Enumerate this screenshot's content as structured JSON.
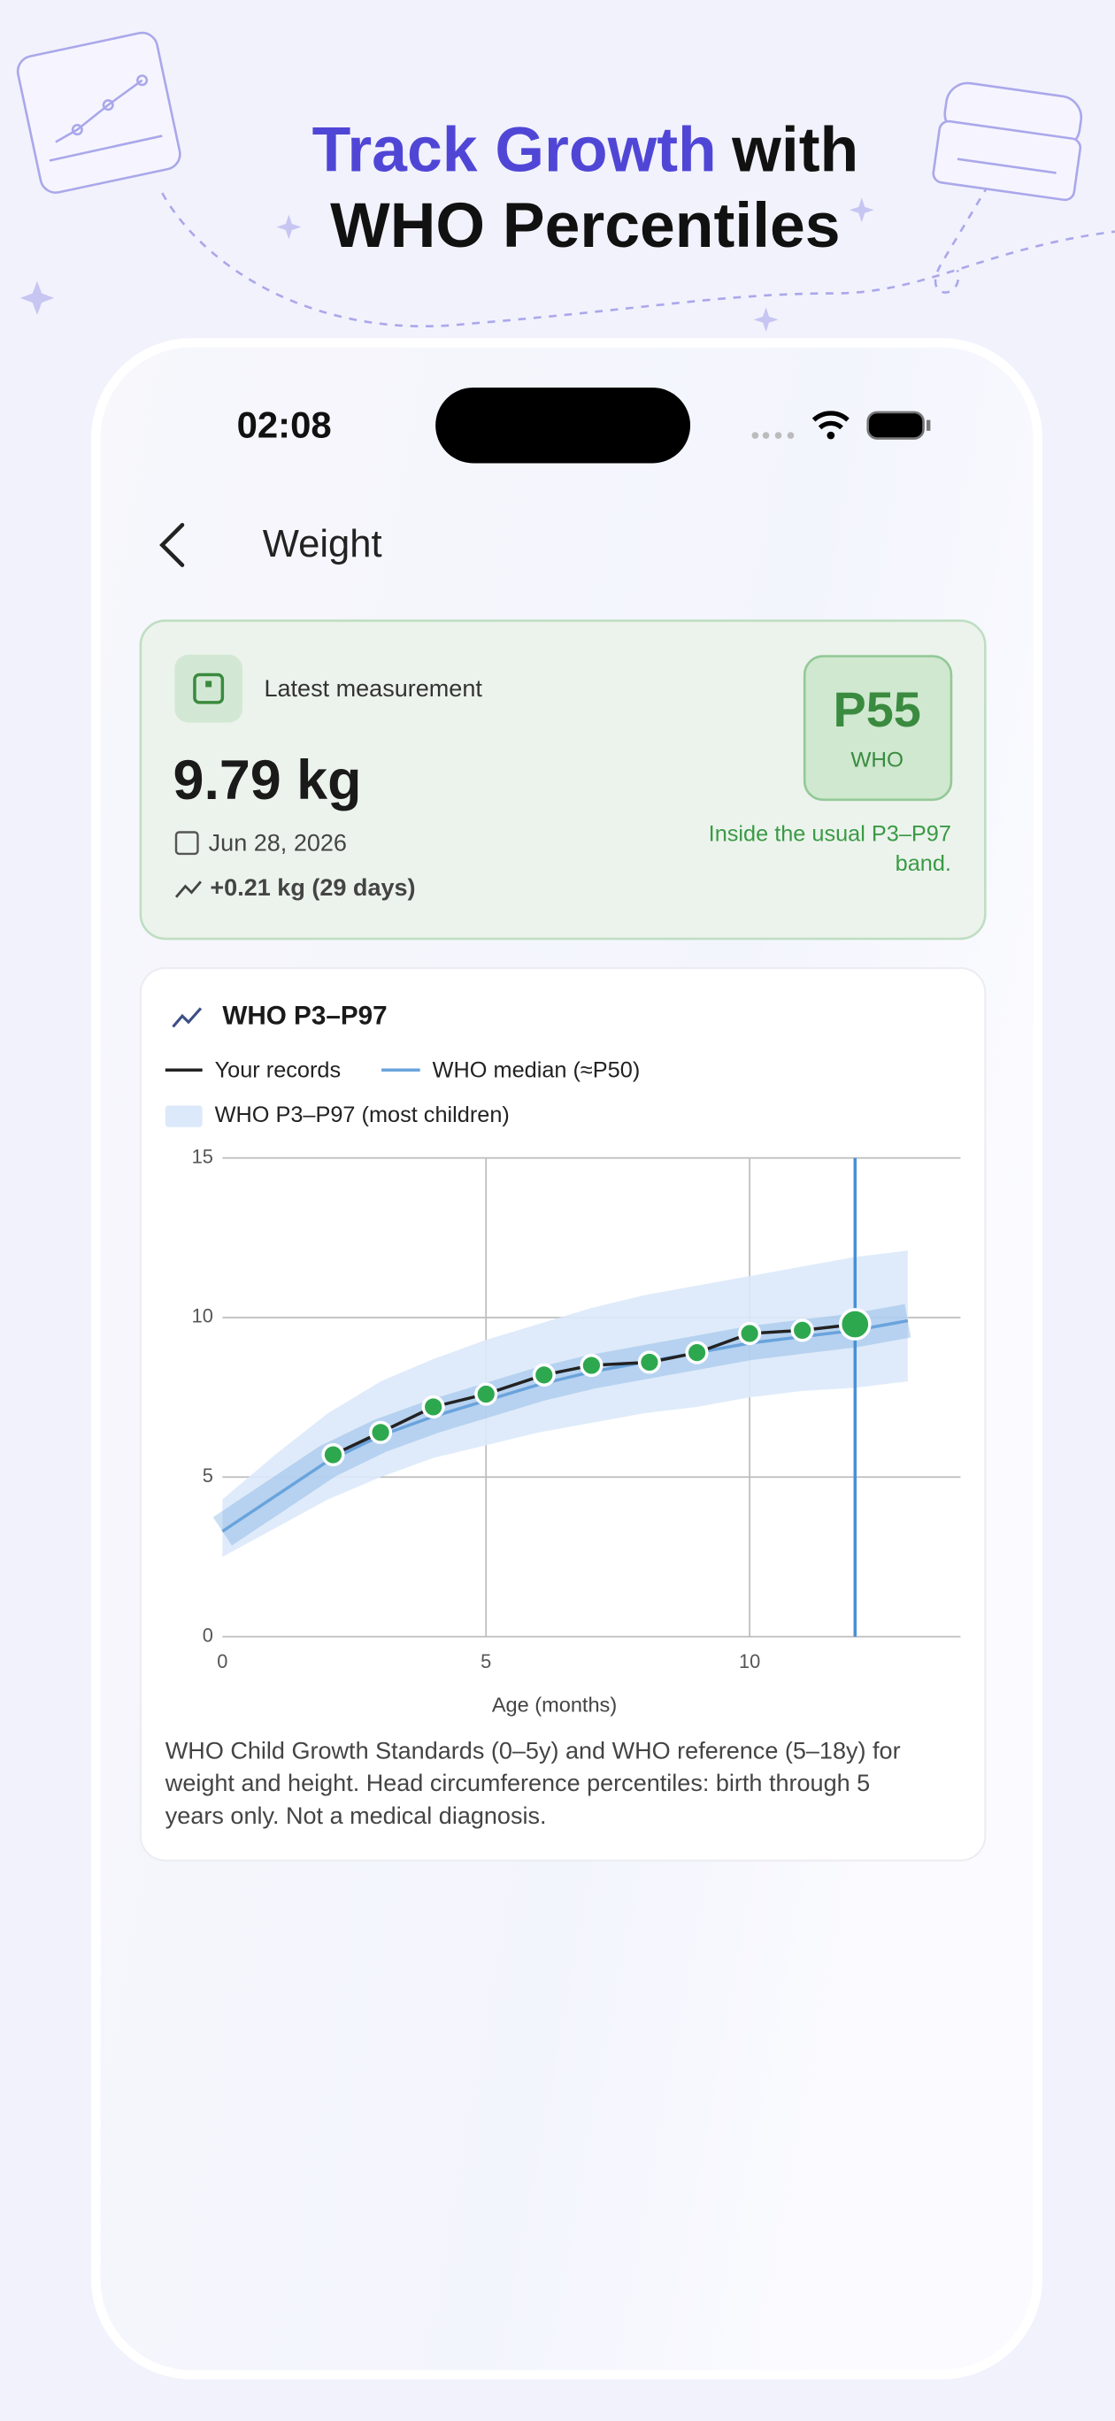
{
  "header": {
    "title_accent": "Track Growth",
    "title_rest": "with",
    "title_line2": "WHO Percentiles"
  },
  "status": {
    "time": "02:08"
  },
  "screen_title": "Weight",
  "latest": {
    "label": "Latest measurement",
    "value": "9.79 kg",
    "date": "Jun 28, 2026",
    "change": "+0.21 kg  (29 days)",
    "percentile": "P55",
    "percentile_source": "WHO",
    "note_lines": [
      "Inside the usual P3–P97",
      "band."
    ]
  },
  "chart_card": {
    "title": "WHO P3–P97",
    "footnote_lines": [
      "WHO Child Growth Standards (0–5y) and WHO reference (5–18y) for",
      "weight and height. Head circumference percentiles: birth through 5",
      "years only. Not a medical diagnosis."
    ]
  },
  "chart_data": {
    "type": "line",
    "xlabel": "Age (months)",
    "x": [
      0,
      1,
      2,
      3,
      4,
      5,
      6,
      7,
      8,
      9,
      10,
      11,
      12,
      13
    ],
    "series": [
      {
        "name": "Your records",
        "color": "#222222",
        "x": [
          2.1,
          3.0,
          4.0,
          5.0,
          6.1,
          7.0,
          8.1,
          9.0,
          10.0,
          11.0,
          12.0
        ],
        "values": [
          5.7,
          6.4,
          7.2,
          7.6,
          8.2,
          8.5,
          8.6,
          8.9,
          9.5,
          9.6,
          9.79
        ],
        "marker_color": "#2ea84f"
      },
      {
        "name": "WHO median (≈P50)",
        "color": "#6aa3dc",
        "values": [
          3.3,
          4.4,
          5.5,
          6.3,
          6.9,
          7.4,
          7.9,
          8.3,
          8.6,
          8.9,
          9.2,
          9.4,
          9.6,
          9.9
        ]
      }
    ],
    "band": {
      "name": "WHO P3–P97 (most children)",
      "color": "#dce9fa",
      "lower": [
        2.5,
        3.4,
        4.3,
        5.0,
        5.6,
        6.0,
        6.4,
        6.7,
        7.0,
        7.2,
        7.5,
        7.7,
        7.8,
        8.0
      ],
      "upper": [
        4.3,
        5.7,
        7.0,
        8.0,
        8.7,
        9.3,
        9.8,
        10.3,
        10.7,
        11.0,
        11.3,
        11.6,
        11.9,
        12.1
      ]
    },
    "selected_x": 12,
    "selected_color": "#4a8fd6",
    "xlim": [
      0,
      14
    ],
    "ylim": [
      0,
      15
    ],
    "xticks": [
      0,
      5,
      10
    ],
    "yticks": [
      0,
      5,
      10,
      15
    ],
    "grid": true
  }
}
